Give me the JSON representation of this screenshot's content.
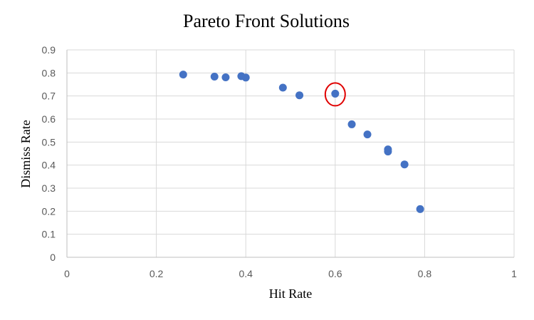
{
  "chart_data": {
    "type": "scatter",
    "title": "Pareto Front Solutions",
    "xlabel": "Hit Rate",
    "ylabel": "Dismiss Rate",
    "xlim": [
      0,
      1
    ],
    "ylim": [
      0,
      0.9
    ],
    "x_ticks": [
      "0",
      "0.2",
      "0.4",
      "0.6",
      "0.8",
      "1"
    ],
    "y_ticks": [
      "0",
      "0.1",
      "0.2",
      "0.3",
      "0.4",
      "0.5",
      "0.6",
      "0.7",
      "0.8",
      "0.9"
    ],
    "grid": true,
    "legend": "none",
    "marker_color": "#4472c4",
    "highlight_color": "#e00000",
    "highlighted_point": {
      "x": 0.6,
      "y": 0.71
    },
    "series": [
      {
        "points": [
          {
            "x": 0.26,
            "y": 0.793
          },
          {
            "x": 0.33,
            "y": 0.784
          },
          {
            "x": 0.355,
            "y": 0.781
          },
          {
            "x": 0.39,
            "y": 0.786
          },
          {
            "x": 0.4,
            "y": 0.78
          },
          {
            "x": 0.483,
            "y": 0.736
          },
          {
            "x": 0.52,
            "y": 0.703
          },
          {
            "x": 0.6,
            "y": 0.71
          },
          {
            "x": 0.637,
            "y": 0.577
          },
          {
            "x": 0.672,
            "y": 0.533
          },
          {
            "x": 0.718,
            "y": 0.468
          },
          {
            "x": 0.718,
            "y": 0.459
          },
          {
            "x": 0.755,
            "y": 0.403
          },
          {
            "x": 0.79,
            "y": 0.209
          }
        ]
      }
    ]
  }
}
